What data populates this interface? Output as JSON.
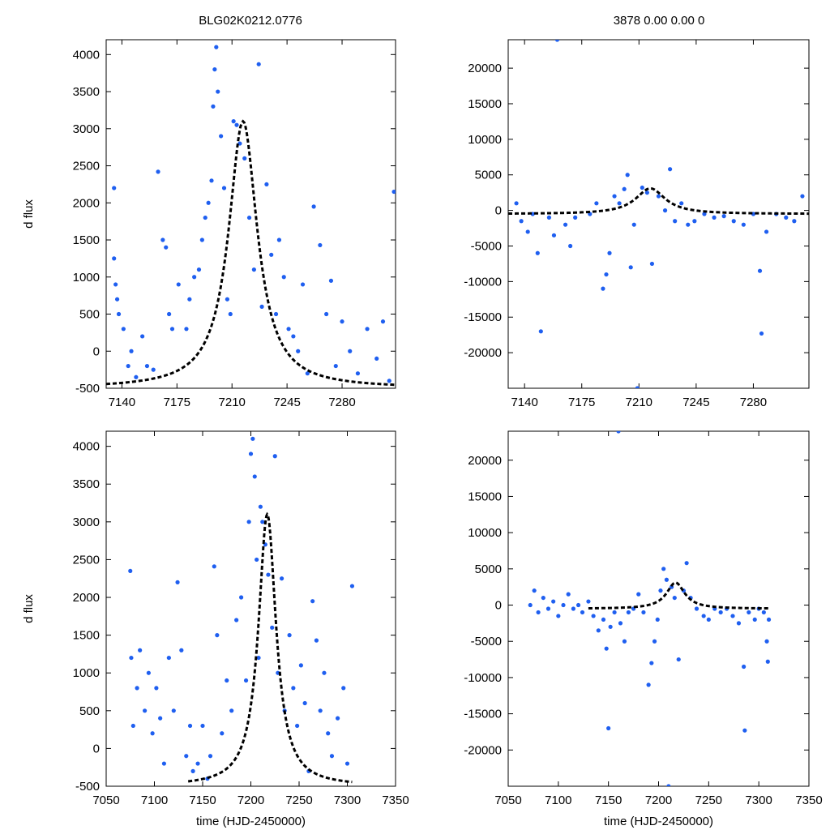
{
  "title_left": "BLG02K0212.0776",
  "title_right": "3878  0.00  0.00  0",
  "colors": {
    "points": "#1f5ff0",
    "model": "#000000",
    "axes": "#000000"
  },
  "chart_data": [
    {
      "id": "tl",
      "type": "scatter",
      "title": "BLG02K0212.0776",
      "xlabel": "",
      "ylabel": "d flux",
      "xlim": [
        7130,
        7314
      ],
      "ylim": [
        -500,
        4200
      ],
      "xticks": [
        7140,
        7175,
        7210,
        7245,
        7280
      ],
      "yticks": [
        -500,
        0,
        500,
        1000,
        1500,
        2000,
        2500,
        3000,
        3500,
        4000
      ],
      "model": {
        "t0": 7217,
        "peak": 3600,
        "baseline": -500,
        "width": 14,
        "xrange": [
          7130,
          7314
        ]
      },
      "points": [
        [
          7135,
          2200
        ],
        [
          7135,
          1250
        ],
        [
          7136,
          900
        ],
        [
          7137,
          700
        ],
        [
          7138,
          500
        ],
        [
          7141,
          300
        ],
        [
          7144,
          -200
        ],
        [
          7146,
          0
        ],
        [
          7149,
          -350
        ],
        [
          7153,
          200
        ],
        [
          7156,
          -200
        ],
        [
          7160,
          -250
        ],
        [
          7163,
          2420
        ],
        [
          7166,
          1500
        ],
        [
          7168,
          1400
        ],
        [
          7170,
          500
        ],
        [
          7172,
          300
        ],
        [
          7176,
          900
        ],
        [
          7181,
          300
        ],
        [
          7183,
          700
        ],
        [
          7186,
          1000
        ],
        [
          7189,
          1100
        ],
        [
          7191,
          1500
        ],
        [
          7193,
          1800
        ],
        [
          7195,
          2000
        ],
        [
          7197,
          2300
        ],
        [
          7198,
          3300
        ],
        [
          7199,
          3800
        ],
        [
          7200,
          4100
        ],
        [
          7201,
          3500
        ],
        [
          7203,
          2900
        ],
        [
          7205,
          2200
        ],
        [
          7207,
          700
        ],
        [
          7209,
          500
        ],
        [
          7211,
          3100
        ],
        [
          7213,
          3050
        ],
        [
          7215,
          2800
        ],
        [
          7218,
          2600
        ],
        [
          7221,
          1800
        ],
        [
          7224,
          1100
        ],
        [
          7227,
          3870
        ],
        [
          7229,
          600
        ],
        [
          7232,
          2250
        ],
        [
          7235,
          1300
        ],
        [
          7238,
          500
        ],
        [
          7240,
          1500
        ],
        [
          7243,
          1000
        ],
        [
          7246,
          300
        ],
        [
          7249,
          200
        ],
        [
          7252,
          0
        ],
        [
          7255,
          900
        ],
        [
          7258,
          -300
        ],
        [
          7262,
          1950
        ],
        [
          7266,
          1430
        ],
        [
          7270,
          500
        ],
        [
          7273,
          950
        ],
        [
          7276,
          -200
        ],
        [
          7280,
          400
        ],
        [
          7285,
          0
        ],
        [
          7290,
          -300
        ],
        [
          7296,
          300
        ],
        [
          7302,
          -100
        ],
        [
          7306,
          400
        ],
        [
          7310,
          -400
        ],
        [
          7313,
          2150
        ]
      ]
    },
    {
      "id": "tr",
      "type": "scatter",
      "title": "3878  0.00  0.00  0",
      "xlabel": "",
      "ylabel": "",
      "xlim": [
        7130,
        7314
      ],
      "ylim": [
        -25000,
        24000
      ],
      "xticks": [
        7140,
        7175,
        7210,
        7245,
        7280
      ],
      "yticks": [
        -20000,
        -15000,
        -10000,
        -5000,
        0,
        5000,
        10000,
        15000,
        20000
      ],
      "model": {
        "t0": 7217,
        "peak": 3600,
        "baseline": -500,
        "width": 14,
        "xrange": [
          7130,
          7314
        ]
      },
      "points": [
        [
          7135,
          1000
        ],
        [
          7138,
          -1500
        ],
        [
          7142,
          -3000
        ],
        [
          7145,
          -500
        ],
        [
          7148,
          -6000
        ],
        [
          7150,
          -17000
        ],
        [
          7155,
          -1000
        ],
        [
          7158,
          -3500
        ],
        [
          7160,
          24000
        ],
        [
          7165,
          -2000
        ],
        [
          7168,
          -5000
        ],
        [
          7171,
          -1000
        ],
        [
          7180,
          -500
        ],
        [
          7184,
          1000
        ],
        [
          7188,
          -11000
        ],
        [
          7190,
          -9000
        ],
        [
          7192,
          -6000
        ],
        [
          7195,
          2000
        ],
        [
          7198,
          1000
        ],
        [
          7201,
          3000
        ],
        [
          7203,
          5000
        ],
        [
          7205,
          -8000
        ],
        [
          7207,
          -2000
        ],
        [
          7209,
          -25000
        ],
        [
          7212,
          3200
        ],
        [
          7215,
          2500
        ],
        [
          7218,
          -7500
        ],
        [
          7222,
          2000
        ],
        [
          7226,
          0
        ],
        [
          7229,
          5800
        ],
        [
          7232,
          -1500
        ],
        [
          7236,
          1000
        ],
        [
          7240,
          -2000
        ],
        [
          7244,
          -1500
        ],
        [
          7250,
          -500
        ],
        [
          7256,
          -1000
        ],
        [
          7262,
          -800
        ],
        [
          7268,
          -1500
        ],
        [
          7274,
          -2000
        ],
        [
          7280,
          -500
        ],
        [
          7284,
          -8500
        ],
        [
          7285,
          -17300
        ],
        [
          7288,
          -3000
        ],
        [
          7294,
          -500
        ],
        [
          7300,
          -1000
        ],
        [
          7305,
          -1500
        ],
        [
          7310,
          2000
        ]
      ]
    },
    {
      "id": "bl",
      "type": "scatter",
      "title": "",
      "xlabel": "time (HJD-2450000)",
      "ylabel": "d flux",
      "xlim": [
        7050,
        7350
      ],
      "ylim": [
        -500,
        4200
      ],
      "xticks": [
        7050,
        7100,
        7150,
        7200,
        7250,
        7300,
        7350
      ],
      "yticks": [
        -500,
        0,
        500,
        1000,
        1500,
        2000,
        2500,
        3000,
        3500,
        4000
      ],
      "model": {
        "t0": 7217,
        "peak": 3600,
        "baseline": -500,
        "width": 14,
        "xrange": [
          7135,
          7305
        ]
      },
      "points": [
        [
          7075,
          2350
        ],
        [
          7076,
          1200
        ],
        [
          7078,
          300
        ],
        [
          7082,
          800
        ],
        [
          7085,
          1300
        ],
        [
          7090,
          500
        ],
        [
          7094,
          1000
        ],
        [
          7098,
          200
        ],
        [
          7102,
          800
        ],
        [
          7106,
          400
        ],
        [
          7110,
          -200
        ],
        [
          7115,
          1200
        ],
        [
          7120,
          500
        ],
        [
          7124,
          2200
        ],
        [
          7128,
          1300
        ],
        [
          7133,
          -100
        ],
        [
          7137,
          300
        ],
        [
          7140,
          -300
        ],
        [
          7145,
          -200
        ],
        [
          7150,
          300
        ],
        [
          7155,
          -400
        ],
        [
          7158,
          -100
        ],
        [
          7162,
          2410
        ],
        [
          7165,
          1500
        ],
        [
          7170,
          200
        ],
        [
          7175,
          900
        ],
        [
          7180,
          500
        ],
        [
          7185,
          1700
        ],
        [
          7190,
          2000
        ],
        [
          7195,
          900
        ],
        [
          7198,
          3000
        ],
        [
          7200,
          3900
        ],
        [
          7202,
          4100
        ],
        [
          7204,
          3600
        ],
        [
          7206,
          2500
        ],
        [
          7208,
          1200
        ],
        [
          7210,
          3200
        ],
        [
          7212,
          3000
        ],
        [
          7215,
          2700
        ],
        [
          7218,
          2300
        ],
        [
          7222,
          1600
        ],
        [
          7225,
          3870
        ],
        [
          7228,
          1000
        ],
        [
          7232,
          2250
        ],
        [
          7235,
          500
        ],
        [
          7240,
          1500
        ],
        [
          7244,
          800
        ],
        [
          7248,
          300
        ],
        [
          7252,
          1100
        ],
        [
          7256,
          600
        ],
        [
          7260,
          -300
        ],
        [
          7264,
          1950
        ],
        [
          7268,
          1430
        ],
        [
          7272,
          500
        ],
        [
          7276,
          1000
        ],
        [
          7280,
          200
        ],
        [
          7284,
          -100
        ],
        [
          7290,
          400
        ],
        [
          7296,
          800
        ],
        [
          7300,
          -200
        ],
        [
          7305,
          2150
        ]
      ]
    },
    {
      "id": "br",
      "type": "scatter",
      "title": "",
      "xlabel": "time (HJD-2450000)",
      "ylabel": "",
      "xlim": [
        7050,
        7350
      ],
      "ylim": [
        -25000,
        24000
      ],
      "xticks": [
        7050,
        7100,
        7150,
        7200,
        7250,
        7300,
        7350
      ],
      "yticks": [
        -20000,
        -15000,
        -10000,
        -5000,
        0,
        5000,
        10000,
        15000,
        20000
      ],
      "model": {
        "t0": 7217,
        "peak": 3600,
        "baseline": -500,
        "width": 14,
        "xrange": [
          7130,
          7310
        ]
      },
      "points": [
        [
          7072,
          0
        ],
        [
          7076,
          2000
        ],
        [
          7080,
          -1000
        ],
        [
          7085,
          1000
        ],
        [
          7090,
          -500
        ],
        [
          7095,
          500
        ],
        [
          7100,
          -1500
        ],
        [
          7105,
          0
        ],
        [
          7110,
          1500
        ],
        [
          7115,
          -500
        ],
        [
          7120,
          0
        ],
        [
          7124,
          -1000
        ],
        [
          7130,
          500
        ],
        [
          7135,
          -1500
        ],
        [
          7140,
          -3500
        ],
        [
          7145,
          -2000
        ],
        [
          7148,
          -6000
        ],
        [
          7150,
          -17000
        ],
        [
          7152,
          -3000
        ],
        [
          7156,
          -1000
        ],
        [
          7160,
          24000
        ],
        [
          7162,
          -2500
        ],
        [
          7166,
          -5000
        ],
        [
          7170,
          -1000
        ],
        [
          7175,
          -500
        ],
        [
          7180,
          1500
        ],
        [
          7185,
          -1000
        ],
        [
          7190,
          -11000
        ],
        [
          7193,
          -8000
        ],
        [
          7196,
          -5000
        ],
        [
          7199,
          -2000
        ],
        [
          7202,
          2000
        ],
        [
          7205,
          5000
        ],
        [
          7208,
          3500
        ],
        [
          7210,
          -25000
        ],
        [
          7213,
          2500
        ],
        [
          7216,
          1000
        ],
        [
          7220,
          -7500
        ],
        [
          7225,
          2000
        ],
        [
          7228,
          5800
        ],
        [
          7232,
          1000
        ],
        [
          7238,
          -500
        ],
        [
          7245,
          -1500
        ],
        [
          7250,
          -2000
        ],
        [
          7256,
          -500
        ],
        [
          7262,
          -1000
        ],
        [
          7268,
          -500
        ],
        [
          7274,
          -1500
        ],
        [
          7280,
          -2500
        ],
        [
          7285,
          -8500
        ],
        [
          7286,
          -17300
        ],
        [
          7290,
          -1000
        ],
        [
          7296,
          -2000
        ],
        [
          7300,
          -500
        ],
        [
          7305,
          -1000
        ],
        [
          7308,
          -5000
        ],
        [
          7309,
          -7800
        ],
        [
          7310,
          -2000
        ]
      ]
    }
  ]
}
